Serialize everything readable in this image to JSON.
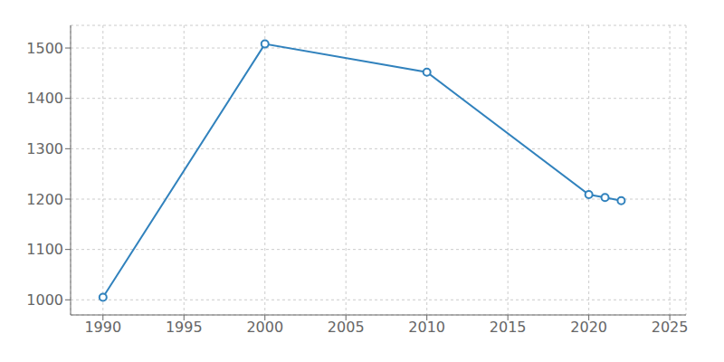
{
  "chart_data": {
    "type": "line",
    "x": [
      1990,
      2000,
      2010,
      2020,
      2021,
      2022
    ],
    "values": [
      1005,
      1508,
      1452,
      1209,
      1203,
      1197
    ],
    "xlim": [
      1988,
      2026
    ],
    "ylim": [
      970,
      1545
    ],
    "xticks": [
      1990,
      1995,
      2000,
      2005,
      2010,
      2015,
      2020,
      2025
    ],
    "yticks": [
      1000,
      1100,
      1200,
      1300,
      1400,
      1500
    ],
    "grid": true,
    "marker": "circle"
  }
}
